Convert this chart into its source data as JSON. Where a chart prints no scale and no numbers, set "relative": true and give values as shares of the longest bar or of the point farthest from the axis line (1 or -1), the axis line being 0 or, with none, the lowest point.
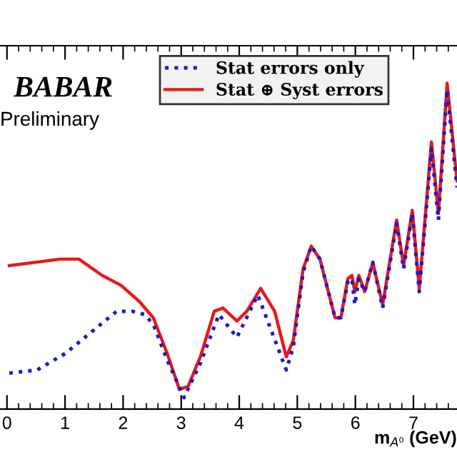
{
  "chart_data": {
    "type": "line",
    "relative": true,
    "xlabel": "m$_{A⁰}$ (GeV)",
    "xlim": [
      -0.12,
      7.75
    ],
    "xticks": [
      0,
      1,
      2,
      3,
      4,
      5,
      6,
      7
    ],
    "annotations": [
      "BABAR",
      "Preliminary"
    ],
    "legend": "top",
    "grid": false,
    "marker": "none",
    "series": [
      {
        "name": "Stat errors only",
        "color": "#1a1acc",
        "line_style": "dotted",
        "x": [
          0.04,
          0.52,
          1.0,
          1.48,
          1.89,
          2.16,
          2.37,
          2.52,
          2.76,
          3.05,
          3.33,
          3.65,
          3.96,
          4.32,
          4.81,
          4.93,
          5.1,
          5.24,
          5.39,
          5.65,
          5.75,
          5.87,
          5.94,
          5.99,
          6.06,
          6.16,
          6.3,
          6.47,
          6.71,
          6.83,
          6.98,
          7.1,
          7.31,
          7.43,
          7.58,
          7.75
        ],
        "values": [
          0.11,
          0.12,
          0.17,
          0.24,
          0.3,
          0.3,
          0.29,
          0.26,
          0.15,
          0.035,
          0.14,
          0.29,
          0.22,
          0.35,
          0.12,
          0.19,
          0.42,
          0.5,
          0.46,
          0.28,
          0.28,
          0.39,
          0.4,
          0.32,
          0.4,
          0.36,
          0.45,
          0.31,
          0.57,
          0.43,
          0.6,
          0.36,
          0.8,
          0.58,
          0.98,
          0.68
        ]
      },
      {
        "name": "Stat ⊕ Syst errors",
        "color": "#e81818",
        "line_style": "solid",
        "x": [
          0.04,
          0.92,
          1.24,
          1.64,
          1.96,
          2.28,
          2.52,
          2.76,
          2.97,
          3.12,
          3.33,
          3.57,
          3.72,
          3.96,
          4.13,
          4.37,
          4.61,
          4.81,
          4.93,
          5.1,
          5.24,
          5.39,
          5.65,
          5.75,
          5.87,
          5.94,
          5.99,
          6.06,
          6.16,
          6.3,
          6.47,
          6.71,
          6.83,
          6.98,
          7.1,
          7.31,
          7.43,
          7.58,
          7.75
        ],
        "values": [
          0.44,
          0.46,
          0.46,
          0.41,
          0.38,
          0.33,
          0.28,
          0.17,
          0.06,
          0.07,
          0.16,
          0.3,
          0.31,
          0.27,
          0.3,
          0.37,
          0.3,
          0.16,
          0.21,
          0.43,
          0.5,
          0.46,
          0.28,
          0.28,
          0.4,
          0.41,
          0.36,
          0.41,
          0.36,
          0.45,
          0.32,
          0.58,
          0.44,
          0.61,
          0.37,
          0.82,
          0.6,
          1.0,
          0.7
        ]
      }
    ]
  }
}
